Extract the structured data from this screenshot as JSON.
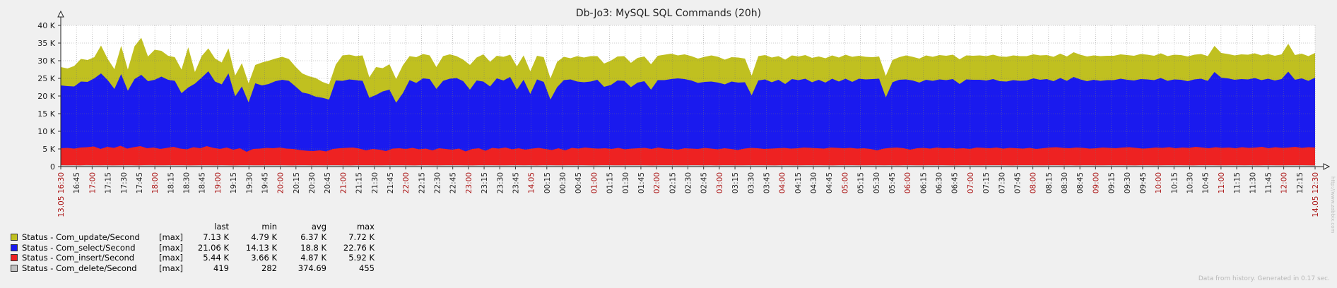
{
  "chart_data": {
    "type": "area",
    "title": "Db-Jo3: MySQL SQL Commands (20h)",
    "y_ticks": [
      "0",
      "5 K",
      "10 K",
      "15 K",
      "20 K",
      "25 K",
      "30 K",
      "35 K",
      "40 K"
    ],
    "ylim": [
      0,
      40000
    ],
    "x_labels": [
      "13.05 16:30",
      "16:45",
      "17:00",
      "17:15",
      "17:30",
      "17:45",
      "18:00",
      "18:15",
      "18:30",
      "18:45",
      "19:00",
      "19:15",
      "19:30",
      "19:45",
      "20:00",
      "20:15",
      "20:30",
      "20:45",
      "21:00",
      "21:15",
      "21:30",
      "21:45",
      "22:00",
      "22:15",
      "22:30",
      "22:45",
      "23:00",
      "23:15",
      "23:30",
      "23:45",
      "14.05",
      "00:15",
      "00:30",
      "00:45",
      "01:00",
      "01:15",
      "01:30",
      "01:45",
      "02:00",
      "02:15",
      "02:30",
      "02:45",
      "03:00",
      "03:15",
      "03:30",
      "03:45",
      "04:00",
      "04:15",
      "04:30",
      "04:45",
      "05:00",
      "05:15",
      "05:30",
      "05:45",
      "06:00",
      "06:15",
      "06:30",
      "06:45",
      "07:00",
      "07:15",
      "07:30",
      "07:45",
      "08:00",
      "08:15",
      "08:30",
      "08:45",
      "09:00",
      "09:15",
      "09:30",
      "09:45",
      "10:00",
      "10:15",
      "10:30",
      "10:45",
      "11:00",
      "11:15",
      "11:30",
      "11:45",
      "12:00",
      "12:15",
      "14.05 12:30"
    ],
    "x_labels_red": [
      "13.05 16:30",
      "17:00",
      "18:00",
      "19:00",
      "20:00",
      "21:00",
      "22:00",
      "23:00",
      "14.05",
      "01:00",
      "02:00",
      "03:00",
      "04:00",
      "05:00",
      "06:00",
      "07:00",
      "08:00",
      "09:00",
      "10:00",
      "11:00",
      "12:00",
      "14.05 12:30"
    ],
    "stack_totals_k": {
      "delete": [
        0.4,
        0.38,
        0.41,
        0.36,
        0.42,
        0.39,
        0.37,
        0.4,
        0.35,
        0.38,
        0.41,
        0.39,
        0.36,
        0.4,
        0.42,
        0.38,
        0.37,
        0.39,
        0.4,
        0.41,
        0.36,
        0.38,
        0.39,
        0.4,
        0.37,
        0.41,
        0.38,
        0.36,
        0.39,
        0.4,
        0.38,
        0.37,
        0.39,
        0.41,
        0.4,
        0.38,
        0.36,
        0.39,
        0.4,
        0.38,
        0.41,
        0.37,
        0.39,
        0.4,
        0.38,
        0.36,
        0.39,
        0.41,
        0.4,
        0.38,
        0.37,
        0.39,
        0.4,
        0.41,
        0.38,
        0.36,
        0.39,
        0.4,
        0.38,
        0.37,
        0.41,
        0.39,
        0.4,
        0.38,
        0.36,
        0.39,
        0.41,
        0.4,
        0.38,
        0.37,
        0.39,
        0.4,
        0.38,
        0.41,
        0.36,
        0.39,
        0.4,
        0.38,
        0.37,
        0.39,
        0.4,
        0.41,
        0.38,
        0.36,
        0.39,
        0.4,
        0.38,
        0.37,
        0.41,
        0.39,
        0.4,
        0.38,
        0.36,
        0.39,
        0.41,
        0.4,
        0.38,
        0.37,
        0.39,
        0.4,
        0.38,
        0.41,
        0.36,
        0.39,
        0.4,
        0.38,
        0.37,
        0.39,
        0.4,
        0.41,
        0.38,
        0.36,
        0.39,
        0.4,
        0.38,
        0.37,
        0.41,
        0.39,
        0.4,
        0.38,
        0.36,
        0.39,
        0.41,
        0.4,
        0.38,
        0.37,
        0.39,
        0.4,
        0.38,
        0.41,
        0.36,
        0.39,
        0.4,
        0.38,
        0.37,
        0.39,
        0.4,
        0.41,
        0.38,
        0.36,
        0.39,
        0.4,
        0.38,
        0.37,
        0.41,
        0.39,
        0.4,
        0.38,
        0.36,
        0.39,
        0.41,
        0.4,
        0.38,
        0.37,
        0.39,
        0.4,
        0.38,
        0.41,
        0.36,
        0.39,
        0.4,
        0.38,
        0.37,
        0.39,
        0.4,
        0.41,
        0.38,
        0.36,
        0.39,
        0.4,
        0.38,
        0.37,
        0.41,
        0.39,
        0.4,
        0.38,
        0.36,
        0.39,
        0.41,
        0.4,
        0.38,
        0.37,
        0.39,
        0.4,
        0.38,
        0.41,
        0.36,
        0.39,
        0.4,
        0.38,
        0.37,
        0.39,
        0.4,
        0.41,
        0.38,
        0.36
      ],
      "insert": [
        5.2,
        5.3,
        5.1,
        5.4,
        5.5,
        5.7,
        5.0,
        5.6,
        5.3,
        5.9,
        5.1,
        5.5,
        5.8,
        5.2,
        5.4,
        5.0,
        5.3,
        5.6,
        5.1,
        4.9,
        5.5,
        5.2,
        5.8,
        5.3,
        5.0,
        5.4,
        4.8,
        5.2,
        4.2,
        5.0,
        5.1,
        5.3,
        5.2,
        5.4,
        5.1,
        5.0,
        4.7,
        4.5,
        4.4,
        4.6,
        4.3,
        5.0,
        5.2,
        5.3,
        5.4,
        5.1,
        4.6,
        5.0,
        4.8,
        4.4,
        5.1,
        5.2,
        5.0,
        5.3,
        4.9,
        5.1,
        4.6,
        5.2,
        5.0,
        4.8,
        5.1,
        4.3,
        5.0,
        5.2,
        4.5,
        5.3,
        5.1,
        5.4,
        4.9,
        5.2,
        4.8,
        5.1,
        5.3,
        5.0,
        4.7,
        5.2,
        4.6,
        5.3,
        5.1,
        5.4,
        5.2,
        5.1,
        5.2,
        5.0,
        5.3,
        4.9,
        5.1,
        5.2,
        5.3,
        5.0,
        5.4,
        5.1,
        5.0,
        4.8,
        5.2,
        5.1,
        5.0,
        5.3,
        5.1,
        4.9,
        5.2,
        5.0,
        4.7,
        5.1,
        5.3,
        5.2,
        5.0,
        5.1,
        5.2,
        5.3,
        5.1,
        5.2,
        5.4,
        5.3,
        5.2,
        5.1,
        5.4,
        5.3,
        5.2,
        5.3,
        5.1,
        5.2,
        5.0,
        4.6,
        5.1,
        5.3,
        5.4,
        5.2,
        4.8,
        5.2,
        5.3,
        5.1,
        5.4,
        5.2,
        5.3,
        5.1,
        5.2,
        5.0,
        5.4,
        5.3,
        5.2,
        5.4,
        5.1,
        5.3,
        5.2,
        5.1,
        5.3,
        5.0,
        5.2,
        5.4,
        5.5,
        5.3,
        5.2,
        5.4,
        5.3,
        5.1,
        5.2,
        5.4,
        5.3,
        5.2,
        5.4,
        5.5,
        5.3,
        5.1,
        5.2,
        5.4,
        5.3,
        5.5,
        5.2,
        5.4,
        5.3,
        5.6,
        5.4,
        5.2,
        5.5,
        5.3,
        5.4,
        5.2,
        5.5,
        5.3,
        5.4,
        5.6,
        5.2,
        5.5,
        5.3,
        5.4,
        5.6,
        5.3,
        5.5,
        5.4
      ],
      "select": [
        23.0,
        22.8,
        22.7,
        24.1,
        24.0,
        25.0,
        26.4,
        24.5,
        22.0,
        26.2,
        21.5,
        24.8,
        26.0,
        24.2,
        24.6,
        25.5,
        24.6,
        24.3,
        20.8,
        22.4,
        23.5,
        25.2,
        27.0,
        24.1,
        23.3,
        26.4,
        19.9,
        22.7,
        18.2,
        23.6,
        23.0,
        23.4,
        24.2,
        24.6,
        24.3,
        22.7,
        21.0,
        20.6,
        19.8,
        19.5,
        19.0,
        24.4,
        24.3,
        24.7,
        24.5,
        24.3,
        19.5,
        20.3,
        21.3,
        21.8,
        18.1,
        20.8,
        24.5,
        23.7,
        25.0,
        24.8,
        22.0,
        24.3,
        24.9,
        25.1,
        24.2,
        21.8,
        24.4,
        24.1,
        22.7,
        25.0,
        24.4,
        25.4,
        21.8,
        24.6,
        20.6,
        24.7,
        24.0,
        19.0,
        22.5,
        24.5,
        24.7,
        24.1,
        23.9,
        24.1,
        24.6,
        22.6,
        23.1,
        24.4,
        24.3,
        22.5,
        23.8,
        24.2,
        21.8,
        24.5,
        24.5,
        24.8,
        25.0,
        24.8,
        24.4,
        23.7,
        24.0,
        24.1,
        23.8,
        23.3,
        24.1,
        23.8,
        23.9,
        20.2,
        24.4,
        24.7,
        23.9,
        24.6,
        23.4,
        24.8,
        24.5,
        24.9,
        23.9,
        24.6,
        23.8,
        24.9,
        24.1,
        24.9,
        24.0,
        24.9,
        24.7,
        24.8,
        24.9,
        19.6,
        23.9,
        24.6,
        24.7,
        24.4,
        23.8,
        24.6,
        24.3,
        24.7,
        24.5,
        24.8,
        23.4,
        24.7,
        24.6,
        24.6,
        24.4,
        24.8,
        24.2,
        24.1,
        24.5,
        24.3,
        24.4,
        25.0,
        24.6,
        24.8,
        24.2,
        25.1,
        24.3,
        25.4,
        24.7,
        24.2,
        24.6,
        24.3,
        24.5,
        24.5,
        24.9,
        24.6,
        24.4,
        24.8,
        24.7,
        24.5,
        25.1,
        24.3,
        24.7,
        24.6,
        24.2,
        24.7,
        24.9,
        24.3,
        26.8,
        25.2,
        25.0,
        24.6,
        24.8,
        24.7,
        25.1,
        24.5,
        24.9,
        24.4,
        24.8,
        26.9,
        24.6,
        25.0,
        24.3,
        25.2
      ],
      "update": [
        28.2,
        27.8,
        28.5,
        30.5,
        30.2,
        31.0,
        34.3,
        30.5,
        27.6,
        34.2,
        27.5,
        34.1,
        36.5,
        31.2,
        33.1,
        32.8,
        31.4,
        31.0,
        27.5,
        33.8,
        26.8,
        31.3,
        33.5,
        30.6,
        29.5,
        33.5,
        25.8,
        29.3,
        23.6,
        28.8,
        29.5,
        30.0,
        30.6,
        31.1,
        30.5,
        28.3,
        26.4,
        25.6,
        25.1,
        24.0,
        23.3,
        28.9,
        31.5,
        31.7,
        31.3,
        31.5,
        25.3,
        28.2,
        27.9,
        29.0,
        24.8,
        28.7,
        31.3,
        31.0,
        31.9,
        31.5,
        28.2,
        31.3,
        31.8,
        31.3,
        30.3,
        28.8,
        30.9,
        31.8,
        29.7,
        31.4,
        31.1,
        31.7,
        28.4,
        31.5,
        27.0,
        31.4,
        31.0,
        25.0,
        29.7,
        31.1,
        30.7,
        31.3,
        30.9,
        31.3,
        31.3,
        29.2,
        30.0,
        31.2,
        31.3,
        29.4,
        30.8,
        31.2,
        29.0,
        31.4,
        31.7,
        32.0,
        31.5,
        31.8,
        31.3,
        30.6,
        31.1,
        31.5,
        31.1,
        30.3,
        31.0,
        30.9,
        30.6,
        25.8,
        31.3,
        31.6,
        30.9,
        31.3,
        30.3,
        31.5,
        31.2,
        31.6,
        30.8,
        31.2,
        30.7,
        31.5,
        30.9,
        31.7,
        31.1,
        31.4,
        31.1,
        31.0,
        31.2,
        25.7,
        30.2,
        31.0,
        31.5,
        31.1,
        30.6,
        31.5,
        31.1,
        31.6,
        31.4,
        31.7,
        30.4,
        31.5,
        31.4,
        31.5,
        31.3,
        31.7,
        31.2,
        31.1,
        31.5,
        31.3,
        31.3,
        31.8,
        31.5,
        31.6,
        31.1,
        32.0,
        31.2,
        32.4,
        31.7,
        31.2,
        31.5,
        31.3,
        31.4,
        31.4,
        31.8,
        31.6,
        31.4,
        31.9,
        31.7,
        31.4,
        32.1,
        31.3,
        31.7,
        31.6,
        31.2,
        31.7,
        31.9,
        31.3,
        34.2,
        32.2,
        31.9,
        31.5,
        31.8,
        31.7,
        32.1,
        31.5,
        31.9,
        31.4,
        31.8,
        34.8,
        31.6,
        32.0,
        31.3,
        32.2
      ]
    },
    "series": [
      {
        "name": "Status - Com_update/Second",
        "color": "#c0c020",
        "fn": "[max]",
        "last": "7.13 K",
        "min": "4.79 K",
        "avg": "6.37 K",
        "max": "7.72 K"
      },
      {
        "name": "Status - Com_select/Second",
        "color": "#1a1aee",
        "fn": "[max]",
        "last": "21.06 K",
        "min": "14.13 K",
        "avg": "18.8 K",
        "max": "22.76 K"
      },
      {
        "name": "Status - Com_insert/Second",
        "color": "#ee2222",
        "fn": "[max]",
        "last": "5.44 K",
        "min": "3.66 K",
        "avg": "4.87 K",
        "max": "5.92 K"
      },
      {
        "name": "Status - Com_delete/Second",
        "color": "#c0c0c0",
        "fn": "[max]",
        "last": "419",
        "min": "282",
        "avg": "374.69",
        "max": "455"
      }
    ]
  },
  "legend_headers": {
    "last": "last",
    "min": "min",
    "avg": "avg",
    "max": "max"
  },
  "footer": "Data from history. Generated in 0.17 sec.",
  "watermark": "http://www.zabbix.com"
}
